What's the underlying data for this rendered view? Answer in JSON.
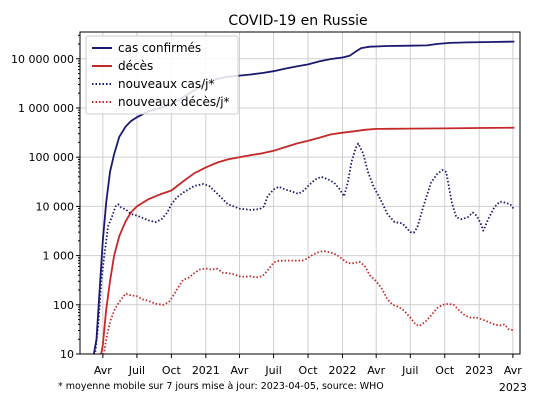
{
  "chart_data": {
    "type": "line",
    "title": "COVID-19 en Russie",
    "xlabel": "",
    "ylabel": "",
    "y_scale": "log",
    "ylim": [
      10,
      35000000
    ],
    "xlim": [
      "2020-01-31",
      "2023-04-20"
    ],
    "grid": true,
    "legend_position": "top-left",
    "x_ticks": [
      {
        "date": "2020-04-01",
        "label": "Avr"
      },
      {
        "date": "2020-07-01",
        "label": "Juil"
      },
      {
        "date": "2020-10-01",
        "label": "Oct"
      },
      {
        "date": "2021-01-01",
        "label": "2021"
      },
      {
        "date": "2021-04-01",
        "label": "Avr"
      },
      {
        "date": "2021-07-01",
        "label": "Juil"
      },
      {
        "date": "2021-10-01",
        "label": "Oct"
      },
      {
        "date": "2022-01-01",
        "label": "2022"
      },
      {
        "date": "2022-04-01",
        "label": "Avr"
      },
      {
        "date": "2022-07-01",
        "label": "Juil"
      },
      {
        "date": "2022-10-01",
        "label": "Oct"
      },
      {
        "date": "2023-01-01",
        "label": "2023"
      },
      {
        "date": "2023-04-01",
        "label": "Avr"
      }
    ],
    "x_tick_sublabel": {
      "date": "2023-04-01",
      "label": "2023"
    },
    "y_ticks": [
      {
        "value": 10,
        "label": "10"
      },
      {
        "value": 100,
        "label": "100"
      },
      {
        "value": 1000,
        "label": "1 000"
      },
      {
        "value": 10000,
        "label": "10 000"
      },
      {
        "value": 100000,
        "label": "100 000"
      },
      {
        "value": 1000000,
        "label": "1 000 000"
      },
      {
        "value": 10000000,
        "label": "10 000 000"
      }
    ],
    "series": [
      {
        "name": "cas confirmés",
        "color": "#191970",
        "style": "solid",
        "points": [
          [
            "2020-03-01",
            5
          ],
          [
            "2020-03-15",
            20
          ],
          [
            "2020-03-25",
            300
          ],
          [
            "2020-04-01",
            2000
          ],
          [
            "2020-04-10",
            12000
          ],
          [
            "2020-04-20",
            50000
          ],
          [
            "2020-05-01",
            115000
          ],
          [
            "2020-05-15",
            260000
          ],
          [
            "2020-06-01",
            420000
          ],
          [
            "2020-06-15",
            540000
          ],
          [
            "2020-07-01",
            650000
          ],
          [
            "2020-08-01",
            850000
          ],
          [
            "2020-09-01",
            1000000
          ],
          [
            "2020-10-01",
            1200000
          ],
          [
            "2020-11-01",
            1650000
          ],
          [
            "2020-12-01",
            2300000
          ],
          [
            "2021-01-01",
            3200000
          ],
          [
            "2021-02-01",
            3900000
          ],
          [
            "2021-03-01",
            4300000
          ],
          [
            "2021-04-01",
            4550000
          ],
          [
            "2021-05-01",
            4800000
          ],
          [
            "2021-06-01",
            5150000
          ],
          [
            "2021-07-01",
            5600000
          ],
          [
            "2021-08-01",
            6300000
          ],
          [
            "2021-09-01",
            7000000
          ],
          [
            "2021-10-01",
            7700000
          ],
          [
            "2021-11-01",
            8900000
          ],
          [
            "2021-12-01",
            9900000
          ],
          [
            "2022-01-01",
            10600000
          ],
          [
            "2022-01-20",
            11500000
          ],
          [
            "2022-02-05",
            14000000
          ],
          [
            "2022-02-20",
            16500000
          ],
          [
            "2022-03-15",
            17600000
          ],
          [
            "2022-05-01",
            18200000
          ],
          [
            "2022-07-01",
            18400000
          ],
          [
            "2022-08-15",
            18700000
          ],
          [
            "2022-09-10",
            20000000
          ],
          [
            "2022-10-15",
            21000000
          ],
          [
            "2022-12-01",
            21500000
          ],
          [
            "2023-02-01",
            21900000
          ],
          [
            "2023-04-05",
            22300000
          ]
        ]
      },
      {
        "name": "décès",
        "color": "#c62828",
        "style": "solid",
        "points": [
          [
            "2020-03-20",
            1
          ],
          [
            "2020-04-01",
            15
          ],
          [
            "2020-04-10",
            80
          ],
          [
            "2020-04-20",
            300
          ],
          [
            "2020-05-01",
            1000
          ],
          [
            "2020-05-15",
            2500
          ],
          [
            "2020-06-01",
            5000
          ],
          [
            "2020-06-15",
            7500
          ],
          [
            "2020-07-01",
            10000
          ],
          [
            "2020-08-01",
            14000
          ],
          [
            "2020-09-01",
            17500
          ],
          [
            "2020-10-01",
            21000
          ],
          [
            "2020-11-01",
            32000
          ],
          [
            "2020-12-01",
            47000
          ],
          [
            "2021-01-01",
            62000
          ],
          [
            "2021-02-01",
            78000
          ],
          [
            "2021-03-01",
            90000
          ],
          [
            "2021-04-01",
            100000
          ],
          [
            "2021-05-01",
            110000
          ],
          [
            "2021-06-01",
            120000
          ],
          [
            "2021-07-01",
            135000
          ],
          [
            "2021-08-01",
            160000
          ],
          [
            "2021-09-01",
            190000
          ],
          [
            "2021-10-01",
            215000
          ],
          [
            "2021-11-01",
            250000
          ],
          [
            "2021-12-01",
            290000
          ],
          [
            "2022-01-01",
            315000
          ],
          [
            "2022-02-01",
            335000
          ],
          [
            "2022-03-01",
            360000
          ],
          [
            "2022-04-01",
            375000
          ],
          [
            "2022-05-01",
            378000
          ],
          [
            "2022-07-01",
            381000
          ],
          [
            "2022-10-01",
            385000
          ],
          [
            "2023-01-01",
            392000
          ],
          [
            "2023-04-05",
            398000
          ]
        ]
      },
      {
        "name": "nouveaux cas/j*",
        "color": "#191970",
        "style": "dotted",
        "points": [
          [
            "2020-03-10",
            8
          ],
          [
            "2020-03-20",
            40
          ],
          [
            "2020-03-28",
            300
          ],
          [
            "2020-04-05",
            1000
          ],
          [
            "2020-04-15",
            4000
          ],
          [
            "2020-04-25",
            6000
          ],
          [
            "2020-05-05",
            10000
          ],
          [
            "2020-05-12",
            11000
          ],
          [
            "2020-05-20",
            9500
          ],
          [
            "2020-06-01",
            8700
          ],
          [
            "2020-06-15",
            7000
          ],
          [
            "2020-07-01",
            6500
          ],
          [
            "2020-08-01",
            5200
          ],
          [
            "2020-08-20",
            4800
          ],
          [
            "2020-09-05",
            5500
          ],
          [
            "2020-09-20",
            7500
          ],
          [
            "2020-10-01",
            11000
          ],
          [
            "2020-10-15",
            15000
          ],
          [
            "2020-11-01",
            19000
          ],
          [
            "2020-12-01",
            26000
          ],
          [
            "2020-12-25",
            28500
          ],
          [
            "2021-01-10",
            26000
          ],
          [
            "2021-02-01",
            18000
          ],
          [
            "2021-03-01",
            11000
          ],
          [
            "2021-04-01",
            9000
          ],
          [
            "2021-05-01",
            8500
          ],
          [
            "2021-05-25",
            8800
          ],
          [
            "2021-06-05",
            10000
          ],
          [
            "2021-06-15",
            16000
          ],
          [
            "2021-07-01",
            22000
          ],
          [
            "2021-07-15",
            25000
          ],
          [
            "2021-08-01",
            22000
          ],
          [
            "2021-08-20",
            20000
          ],
          [
            "2021-09-05",
            18000
          ],
          [
            "2021-09-20",
            21000
          ],
          [
            "2021-10-01",
            26000
          ],
          [
            "2021-10-20",
            35000
          ],
          [
            "2021-11-05",
            40000
          ],
          [
            "2021-11-25",
            35000
          ],
          [
            "2021-12-10",
            30000
          ],
          [
            "2021-12-25",
            22000
          ],
          [
            "2022-01-05",
            16000
          ],
          [
            "2022-01-15",
            30000
          ],
          [
            "2022-01-25",
            80000
          ],
          [
            "2022-02-05",
            150000
          ],
          [
            "2022-02-12",
            190000
          ],
          [
            "2022-02-25",
            120000
          ],
          [
            "2022-03-10",
            50000
          ],
          [
            "2022-03-25",
            25000
          ],
          [
            "2022-04-10",
            15000
          ],
          [
            "2022-05-01",
            7000
          ],
          [
            "2022-05-20",
            4800
          ],
          [
            "2022-06-10",
            4500
          ],
          [
            "2022-07-01",
            3000
          ],
          [
            "2022-07-10",
            2900
          ],
          [
            "2022-07-20",
            3800
          ],
          [
            "2022-08-05",
            10000
          ],
          [
            "2022-08-25",
            30000
          ],
          [
            "2022-09-10",
            45000
          ],
          [
            "2022-09-25",
            55000
          ],
          [
            "2022-10-05",
            50000
          ],
          [
            "2022-10-20",
            12000
          ],
          [
            "2022-11-01",
            6000
          ],
          [
            "2022-11-15",
            5500
          ],
          [
            "2022-12-01",
            6000
          ],
          [
            "2022-12-15",
            7500
          ],
          [
            "2022-12-25",
            6500
          ],
          [
            "2023-01-05",
            4500
          ],
          [
            "2023-01-12",
            3200
          ],
          [
            "2023-01-25",
            5500
          ],
          [
            "2023-02-10",
            9500
          ],
          [
            "2023-02-25",
            12500
          ],
          [
            "2023-03-10",
            12000
          ],
          [
            "2023-03-25",
            11000
          ],
          [
            "2023-04-05",
            8500
          ]
        ]
      },
      {
        "name": "nouveaux décès/j*",
        "color": "#c62828",
        "style": "dotted",
        "points": [
          [
            "2020-04-01",
            7
          ],
          [
            "2020-04-10",
            20
          ],
          [
            "2020-04-20",
            45
          ],
          [
            "2020-05-01",
            75
          ],
          [
            "2020-05-10",
            100
          ],
          [
            "2020-05-20",
            130
          ],
          [
            "2020-06-01",
            170
          ],
          [
            "2020-06-15",
            155
          ],
          [
            "2020-07-01",
            150
          ],
          [
            "2020-07-15",
            130
          ],
          [
            "2020-08-01",
            120
          ],
          [
            "2020-08-20",
            105
          ],
          [
            "2020-09-10",
            100
          ],
          [
            "2020-09-25",
            115
          ],
          [
            "2020-10-05",
            150
          ],
          [
            "2020-10-20",
            230
          ],
          [
            "2020-11-01",
            320
          ],
          [
            "2020-11-15",
            350
          ],
          [
            "2020-12-01",
            440
          ],
          [
            "2020-12-15",
            520
          ],
          [
            "2021-01-01",
            550
          ],
          [
            "2021-01-15",
            520
          ],
          [
            "2021-02-01",
            540
          ],
          [
            "2021-02-15",
            450
          ],
          [
            "2021-03-01",
            440
          ],
          [
            "2021-03-15",
            420
          ],
          [
            "2021-04-01",
            380
          ],
          [
            "2021-04-15",
            370
          ],
          [
            "2021-05-01",
            380
          ],
          [
            "2021-05-15",
            360
          ],
          [
            "2021-06-01",
            380
          ],
          [
            "2021-06-15",
            500
          ],
          [
            "2021-07-01",
            720
          ],
          [
            "2021-07-15",
            780
          ],
          [
            "2021-08-01",
            790
          ],
          [
            "2021-08-20",
            790
          ],
          [
            "2021-09-05",
            790
          ],
          [
            "2021-09-20",
            800
          ],
          [
            "2021-10-01",
            900
          ],
          [
            "2021-10-15",
            1050
          ],
          [
            "2021-11-01",
            1200
          ],
          [
            "2021-11-15",
            1230
          ],
          [
            "2021-12-01",
            1150
          ],
          [
            "2021-12-15",
            1050
          ],
          [
            "2022-01-01",
            850
          ],
          [
            "2022-01-15",
            700
          ],
          [
            "2022-02-01",
            700
          ],
          [
            "2022-02-15",
            750
          ],
          [
            "2022-03-01",
            620
          ],
          [
            "2022-03-15",
            400
          ],
          [
            "2022-04-01",
            300
          ],
          [
            "2022-04-15",
            220
          ],
          [
            "2022-05-01",
            130
          ],
          [
            "2022-05-15",
            100
          ],
          [
            "2022-06-01",
            90
          ],
          [
            "2022-06-15",
            75
          ],
          [
            "2022-07-01",
            55
          ],
          [
            "2022-07-15",
            40
          ],
          [
            "2022-07-25",
            37
          ],
          [
            "2022-08-10",
            45
          ],
          [
            "2022-08-25",
            60
          ],
          [
            "2022-09-10",
            85
          ],
          [
            "2022-09-25",
            100
          ],
          [
            "2022-10-10",
            105
          ],
          [
            "2022-10-25",
            100
          ],
          [
            "2022-11-10",
            75
          ],
          [
            "2022-11-25",
            60
          ],
          [
            "2022-12-10",
            55
          ],
          [
            "2022-12-25",
            55
          ],
          [
            "2023-01-10",
            50
          ],
          [
            "2023-01-25",
            45
          ],
          [
            "2023-02-10",
            40
          ],
          [
            "2023-02-25",
            38
          ],
          [
            "2023-03-10",
            40
          ],
          [
            "2023-03-20",
            32
          ],
          [
            "2023-04-05",
            30
          ]
        ]
      }
    ],
    "footnote": "* moyenne mobile sur 7 jours  mise à jour: 2023-04-05, source: WHO"
  }
}
